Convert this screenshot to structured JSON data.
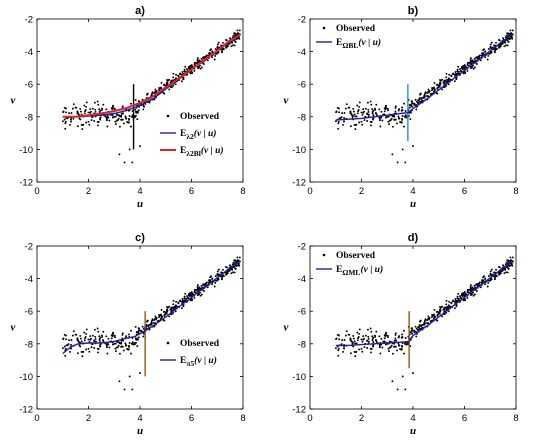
{
  "chart_data": [
    {
      "type": "scatter",
      "title": "a)",
      "xlabel": "u",
      "ylabel": "v",
      "xlim": [
        0,
        8
      ],
      "ylim": [
        -12,
        -2
      ],
      "xticks": [
        0,
        2,
        4,
        6,
        8
      ],
      "yticks": [
        -12,
        -10,
        -8,
        -6,
        -4,
        -2
      ],
      "legend_position": "lower-right",
      "scatter_series": "Observed",
      "lines": [
        {
          "name": "λ2",
          "color": "#1f1fa8",
          "width": 1.4,
          "x": [
            1.0,
            1.5,
            2.0,
            2.5,
            3.0,
            3.5,
            4.0,
            4.5,
            5.0,
            5.5,
            6.0,
            6.5,
            7.0,
            7.5,
            7.9
          ],
          "y": [
            -8.0,
            -8.0,
            -7.95,
            -7.9,
            -7.8,
            -7.6,
            -7.3,
            -6.9,
            -6.3,
            -5.7,
            -5.1,
            -4.5,
            -3.9,
            -3.3,
            -2.9
          ]
        },
        {
          "name": "λ2Bl",
          "color": "#e0202a",
          "width": 2.0,
          "x": [
            1.0,
            1.5,
            2.0,
            2.5,
            3.0,
            3.5,
            4.0,
            4.5,
            5.0,
            5.5,
            6.0,
            6.5,
            7.0,
            7.5,
            7.9
          ],
          "y": [
            -8.0,
            -8.0,
            -7.9,
            -7.8,
            -7.65,
            -7.45,
            -7.15,
            -6.75,
            -6.2,
            -5.65,
            -5.1,
            -4.5,
            -3.95,
            -3.35,
            -2.95
          ]
        }
      ],
      "vline": {
        "x": 3.75,
        "y": [
          -10,
          -6
        ],
        "color": "#000000"
      }
    },
    {
      "type": "scatter",
      "title": "b)",
      "xlabel": "u",
      "ylabel": "v",
      "xlim": [
        0,
        8
      ],
      "ylim": [
        -12,
        -2
      ],
      "xticks": [
        0,
        2,
        4,
        6,
        8
      ],
      "yticks": [
        -12,
        -10,
        -8,
        -6,
        -4,
        -2
      ],
      "legend_position": "top-left",
      "scatter_series": "Observed",
      "lines": [
        {
          "name": "ΩBL",
          "color": "#1f1fa8",
          "width": 1.4,
          "x": [
            1.0,
            1.5,
            2.0,
            2.5,
            3.0,
            3.5,
            3.8,
            4.0,
            4.5,
            5.0,
            5.5,
            6.0,
            6.5,
            7.0,
            7.5,
            7.9
          ],
          "y": [
            -8.2,
            -8.15,
            -8.1,
            -8.0,
            -7.9,
            -7.8,
            -7.75,
            -7.5,
            -6.95,
            -6.35,
            -5.75,
            -5.15,
            -4.55,
            -3.95,
            -3.35,
            -2.9
          ]
        }
      ],
      "vline": {
        "x": 3.8,
        "y": [
          -9.5,
          -6
        ],
        "color": "#2a8fd0"
      }
    },
    {
      "type": "scatter",
      "title": "c)",
      "xlabel": "u",
      "ylabel": "v",
      "xlim": [
        0,
        8
      ],
      "ylim": [
        -12,
        -2
      ],
      "xticks": [
        0,
        2,
        4,
        6,
        8
      ],
      "yticks": [
        -12,
        -10,
        -8,
        -6,
        -4,
        -2
      ],
      "legend_position": "lower-right",
      "scatter_series": "Observed",
      "lines": [
        {
          "name": "π5",
          "color": "#1f1fa8",
          "width": 1.4,
          "x": [
            1.0,
            1.3,
            1.6,
            2.0,
            2.5,
            3.0,
            3.5,
            3.8,
            4.1,
            4.5,
            5.0,
            5.5,
            6.0,
            6.5,
            7.0,
            7.5,
            7.9
          ],
          "y": [
            -8.6,
            -8.2,
            -8.0,
            -7.95,
            -7.95,
            -7.85,
            -7.65,
            -7.55,
            -7.3,
            -6.9,
            -6.35,
            -5.75,
            -5.15,
            -4.55,
            -3.95,
            -3.35,
            -2.9
          ]
        }
      ],
      "vline": {
        "x": 4.2,
        "y": [
          -10,
          -6
        ],
        "color": "#8a5a14"
      }
    },
    {
      "type": "scatter",
      "title": "d)",
      "xlabel": "u",
      "ylabel": "v",
      "xlim": [
        0,
        8
      ],
      "ylim": [
        -12,
        -2
      ],
      "xticks": [
        0,
        2,
        4,
        6,
        8
      ],
      "yticks": [
        -12,
        -10,
        -8,
        -6,
        -4,
        -2
      ],
      "legend_position": "top-left",
      "scatter_series": "Observed",
      "lines": [
        {
          "name": "ΩML",
          "color": "#1f1fa8",
          "width": 1.4,
          "x": [
            1.0,
            1.5,
            2.0,
            2.5,
            3.0,
            3.5,
            3.85,
            4.0,
            4.5,
            5.0,
            5.5,
            6.0,
            6.5,
            7.0,
            7.5,
            7.9
          ],
          "y": [
            -8.1,
            -8.1,
            -8.05,
            -8.0,
            -7.95,
            -7.9,
            -7.85,
            -7.5,
            -6.95,
            -6.35,
            -5.75,
            -5.15,
            -4.55,
            -3.95,
            -3.35,
            -2.9
          ]
        }
      ],
      "vline": {
        "x": 3.85,
        "y": [
          -9.5,
          -6
        ],
        "color": "#8a5a14"
      }
    }
  ],
  "legend": {
    "observed": "Observed",
    "e_letter": "E",
    "arg": "(v | u)"
  }
}
